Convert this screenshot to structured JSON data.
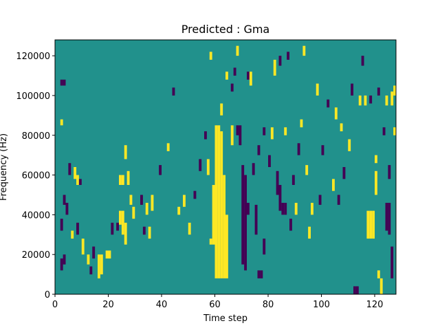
{
  "chart_data": {
    "type": "heatmap",
    "title": "Predicted : Gma",
    "xlabel": "Time step",
    "ylabel": "Frequency (Hz)",
    "xlim": [
      0,
      128
    ],
    "ylim": [
      0,
      128000
    ],
    "x_ticks": [
      0,
      20,
      40,
      60,
      80,
      100,
      120
    ],
    "y_ticks": [
      0,
      20000,
      40000,
      60000,
      80000,
      100000,
      120000
    ],
    "x_tick_labels": [
      "0",
      "20",
      "40",
      "60",
      "80",
      "100",
      "120"
    ],
    "y_tick_labels": [
      "0",
      "20000",
      "40000",
      "60000",
      "80000",
      "100000",
      "120000"
    ],
    "levels": [
      -1,
      0,
      1
    ],
    "colors": {
      "background": "#21918c",
      "low": "#440154",
      "high": "#fde725"
    },
    "grid": false,
    "cells": [
      {
        "x": 60,
        "y0": 8000,
        "y1": 85000,
        "value": 1
      },
      {
        "x": 61,
        "y0": 8000,
        "y1": 85000,
        "value": 1
      },
      {
        "x": 62,
        "y0": 8000,
        "y1": 82000,
        "value": 1
      },
      {
        "x": 63,
        "y0": 8000,
        "y1": 60000,
        "value": 1
      },
      {
        "x": 64,
        "y0": 8000,
        "y1": 40000,
        "value": 1
      },
      {
        "x": 59,
        "y0": 25000,
        "y1": 55000,
        "value": 1
      },
      {
        "x": 58,
        "y0": 25000,
        "y1": 28000,
        "value": 1
      },
      {
        "x": 57,
        "y0": 60000,
        "y1": 68000,
        "value": 1
      },
      {
        "x": 66,
        "y0": 75000,
        "y1": 85000,
        "value": 1
      },
      {
        "x": 68,
        "y0": 80000,
        "y1": 85000,
        "value": -1
      },
      {
        "x": 69,
        "y0": 75000,
        "y1": 85000,
        "value": -1
      },
      {
        "x": 70,
        "y0": 15000,
        "y1": 65000,
        "value": -1
      },
      {
        "x": 71,
        "y0": 12000,
        "y1": 60000,
        "value": -1
      },
      {
        "x": 72,
        "y0": 40000,
        "y1": 46000,
        "value": -1
      },
      {
        "x": 76,
        "y0": 8000,
        "y1": 12000,
        "value": -1
      },
      {
        "x": 77,
        "y0": 8000,
        "y1": 12000,
        "value": -1
      },
      {
        "x": 75,
        "y0": 30000,
        "y1": 45000,
        "value": -1
      },
      {
        "x": 78,
        "y0": 20000,
        "y1": 28000,
        "value": -1
      },
      {
        "x": 85,
        "y0": 40000,
        "y1": 46000,
        "value": -1
      },
      {
        "x": 86,
        "y0": 40000,
        "y1": 46000,
        "value": -1
      },
      {
        "x": 83,
        "y0": 50000,
        "y1": 62000,
        "value": -1
      },
      {
        "x": 84,
        "y0": 42000,
        "y1": 55000,
        "value": -1
      },
      {
        "x": 117,
        "y0": 28000,
        "y1": 42000,
        "value": 1
      },
      {
        "x": 118,
        "y0": 28000,
        "y1": 42000,
        "value": 1
      },
      {
        "x": 119,
        "y0": 28000,
        "y1": 42000,
        "value": 1
      },
      {
        "x": 120,
        "y0": 50000,
        "y1": 62000,
        "value": 1
      },
      {
        "x": 121,
        "y0": 8000,
        "y1": 12000,
        "value": 1
      },
      {
        "x": 122,
        "y0": 0,
        "y1": 8000,
        "value": 1
      },
      {
        "x": 124,
        "y0": 32000,
        "y1": 46000,
        "value": -1
      },
      {
        "x": 125,
        "y0": 30000,
        "y1": 46000,
        "value": -1
      },
      {
        "x": 126,
        "y0": 8000,
        "y1": 24000,
        "value": -1
      },
      {
        "x": 126,
        "y0": 95000,
        "y1": 102000,
        "value": 1
      },
      {
        "x": 112,
        "y0": 0,
        "y1": 4000,
        "value": -1
      },
      {
        "x": 113,
        "y0": 0,
        "y1": 4000,
        "value": -1
      },
      {
        "x": 2,
        "y0": 85000,
        "y1": 88000,
        "value": 1
      },
      {
        "x": 2,
        "y0": 12000,
        "y1": 18000,
        "value": -1
      },
      {
        "x": 3,
        "y0": 15000,
        "y1": 20000,
        "value": -1
      },
      {
        "x": 2,
        "y0": 105000,
        "y1": 108000,
        "value": -1
      },
      {
        "x": 3,
        "y0": 105000,
        "y1": 108000,
        "value": -1
      },
      {
        "x": 2,
        "y0": 32000,
        "y1": 38000,
        "value": -1
      },
      {
        "x": 3,
        "y0": 45000,
        "y1": 50000,
        "value": -1
      },
      {
        "x": 4,
        "y0": 40000,
        "y1": 46000,
        "value": -1
      },
      {
        "x": 5,
        "y0": 60000,
        "y1": 66000,
        "value": -1
      },
      {
        "x": 7,
        "y0": 58000,
        "y1": 64000,
        "value": 1
      },
      {
        "x": 8,
        "y0": 55000,
        "y1": 60000,
        "value": 1
      },
      {
        "x": 9,
        "y0": 55000,
        "y1": 58000,
        "value": -1
      },
      {
        "x": 6,
        "y0": 28000,
        "y1": 32000,
        "value": 1
      },
      {
        "x": 8,
        "y0": 30000,
        "y1": 36000,
        "value": -1
      },
      {
        "x": 10,
        "y0": 20000,
        "y1": 28000,
        "value": 1
      },
      {
        "x": 12,
        "y0": 15000,
        "y1": 20000,
        "value": 1
      },
      {
        "x": 13,
        "y0": 10000,
        "y1": 14000,
        "value": -1
      },
      {
        "x": 14,
        "y0": 18000,
        "y1": 24000,
        "value": -1
      },
      {
        "x": 16,
        "y0": 8000,
        "y1": 20000,
        "value": 1
      },
      {
        "x": 17,
        "y0": 10000,
        "y1": 20000,
        "value": 1
      },
      {
        "x": 19,
        "y0": 18000,
        "y1": 22000,
        "value": 1
      },
      {
        "x": 20,
        "y0": 18000,
        "y1": 22000,
        "value": 1
      },
      {
        "x": 21,
        "y0": 30000,
        "y1": 36000,
        "value": -1
      },
      {
        "x": 23,
        "y0": 32000,
        "y1": 36000,
        "value": -1
      },
      {
        "x": 24,
        "y0": 35000,
        "y1": 42000,
        "value": 1
      },
      {
        "x": 25,
        "y0": 30000,
        "y1": 42000,
        "value": 1
      },
      {
        "x": 26,
        "y0": 25000,
        "y1": 36000,
        "value": 1
      },
      {
        "x": 24,
        "y0": 55000,
        "y1": 60000,
        "value": 1
      },
      {
        "x": 25,
        "y0": 55000,
        "y1": 60000,
        "value": 1
      },
      {
        "x": 27,
        "y0": 55000,
        "y1": 62000,
        "value": 1
      },
      {
        "x": 26,
        "y0": 68000,
        "y1": 75000,
        "value": 1
      },
      {
        "x": 28,
        "y0": 45000,
        "y1": 50000,
        "value": 1
      },
      {
        "x": 29,
        "y0": 38000,
        "y1": 44000,
        "value": 1
      },
      {
        "x": 32,
        "y0": 45000,
        "y1": 50000,
        "value": -1
      },
      {
        "x": 33,
        "y0": 30000,
        "y1": 34000,
        "value": -1
      },
      {
        "x": 34,
        "y0": 40000,
        "y1": 46000,
        "value": 1
      },
      {
        "x": 35,
        "y0": 28000,
        "y1": 34000,
        "value": 1
      },
      {
        "x": 36,
        "y0": 42000,
        "y1": 50000,
        "value": 1
      },
      {
        "x": 39,
        "y0": 60000,
        "y1": 65000,
        "value": -1
      },
      {
        "x": 42,
        "y0": 72000,
        "y1": 76000,
        "value": 1
      },
      {
        "x": 44,
        "y0": 100000,
        "y1": 104000,
        "value": -1
      },
      {
        "x": 46,
        "y0": 40000,
        "y1": 44000,
        "value": 1
      },
      {
        "x": 48,
        "y0": 44000,
        "y1": 50000,
        "value": 1
      },
      {
        "x": 50,
        "y0": 30000,
        "y1": 36000,
        "value": 1
      },
      {
        "x": 52,
        "y0": 48000,
        "y1": 52000,
        "value": -1
      },
      {
        "x": 54,
        "y0": 62000,
        "y1": 68000,
        "value": -1
      },
      {
        "x": 56,
        "y0": 78000,
        "y1": 82000,
        "value": -1
      },
      {
        "x": 58,
        "y0": 118000,
        "y1": 122000,
        "value": 1
      },
      {
        "x": 62,
        "y0": 90000,
        "y1": 96000,
        "value": 1
      },
      {
        "x": 64,
        "y0": 108000,
        "y1": 112000,
        "value": 1
      },
      {
        "x": 66,
        "y0": 102000,
        "y1": 106000,
        "value": -1
      },
      {
        "x": 67,
        "y0": 110000,
        "y1": 114000,
        "value": -1
      },
      {
        "x": 68,
        "y0": 120000,
        "y1": 125000,
        "value": 1
      },
      {
        "x": 72,
        "y0": 108000,
        "y1": 112000,
        "value": -1
      },
      {
        "x": 73,
        "y0": 105000,
        "y1": 112000,
        "value": 1
      },
      {
        "x": 74,
        "y0": 60000,
        "y1": 66000,
        "value": -1
      },
      {
        "x": 76,
        "y0": 70000,
        "y1": 75000,
        "value": -1
      },
      {
        "x": 78,
        "y0": 80000,
        "y1": 84000,
        "value": -1
      },
      {
        "x": 80,
        "y0": 64000,
        "y1": 70000,
        "value": -1
      },
      {
        "x": 81,
        "y0": 78000,
        "y1": 84000,
        "value": 1
      },
      {
        "x": 82,
        "y0": 110000,
        "y1": 118000,
        "value": 1
      },
      {
        "x": 84,
        "y0": 115000,
        "y1": 120000,
        "value": -1
      },
      {
        "x": 86,
        "y0": 80000,
        "y1": 84000,
        "value": 1
      },
      {
        "x": 87,
        "y0": 118000,
        "y1": 122000,
        "value": -1
      },
      {
        "x": 88,
        "y0": 32000,
        "y1": 38000,
        "value": -1
      },
      {
        "x": 89,
        "y0": 55000,
        "y1": 60000,
        "value": -1
      },
      {
        "x": 90,
        "y0": 40000,
        "y1": 46000,
        "value": 1
      },
      {
        "x": 91,
        "y0": 70000,
        "y1": 76000,
        "value": -1
      },
      {
        "x": 92,
        "y0": 84000,
        "y1": 88000,
        "value": 1
      },
      {
        "x": 93,
        "y0": 120000,
        "y1": 125000,
        "value": 1
      },
      {
        "x": 94,
        "y0": 60000,
        "y1": 65000,
        "value": 1
      },
      {
        "x": 95,
        "y0": 28000,
        "y1": 34000,
        "value": 1
      },
      {
        "x": 96,
        "y0": 40000,
        "y1": 46000,
        "value": 1
      },
      {
        "x": 98,
        "y0": 100000,
        "y1": 106000,
        "value": 1
      },
      {
        "x": 99,
        "y0": 45000,
        "y1": 50000,
        "value": -1
      },
      {
        "x": 100,
        "y0": 70000,
        "y1": 75000,
        "value": -1
      },
      {
        "x": 102,
        "y0": 94000,
        "y1": 98000,
        "value": -1
      },
      {
        "x": 104,
        "y0": 52000,
        "y1": 58000,
        "value": 1
      },
      {
        "x": 105,
        "y0": 88000,
        "y1": 94000,
        "value": 1
      },
      {
        "x": 106,
        "y0": 45000,
        "y1": 50000,
        "value": -1
      },
      {
        "x": 107,
        "y0": 82000,
        "y1": 86000,
        "value": 1
      },
      {
        "x": 108,
        "y0": 58000,
        "y1": 64000,
        "value": -1
      },
      {
        "x": 110,
        "y0": 72000,
        "y1": 78000,
        "value": 1
      },
      {
        "x": 111,
        "y0": 100000,
        "y1": 106000,
        "value": -1
      },
      {
        "x": 114,
        "y0": 95000,
        "y1": 100000,
        "value": 1
      },
      {
        "x": 115,
        "y0": 115000,
        "y1": 120000,
        "value": -1
      },
      {
        "x": 116,
        "y0": 95000,
        "y1": 100000,
        "value": 1
      },
      {
        "x": 118,
        "y0": 96000,
        "y1": 100000,
        "value": -1
      },
      {
        "x": 120,
        "y0": 66000,
        "y1": 70000,
        "value": 1
      },
      {
        "x": 121,
        "y0": 100000,
        "y1": 104000,
        "value": -1
      },
      {
        "x": 123,
        "y0": 80000,
        "y1": 84000,
        "value": -1
      },
      {
        "x": 124,
        "y0": 95000,
        "y1": 100000,
        "value": 1
      },
      {
        "x": 125,
        "y0": 58000,
        "y1": 65000,
        "value": -1
      },
      {
        "x": 127,
        "y0": 100000,
        "y1": 105000,
        "value": 1
      },
      {
        "x": 127,
        "y0": 80000,
        "y1": 84000,
        "value": 1
      }
    ]
  }
}
